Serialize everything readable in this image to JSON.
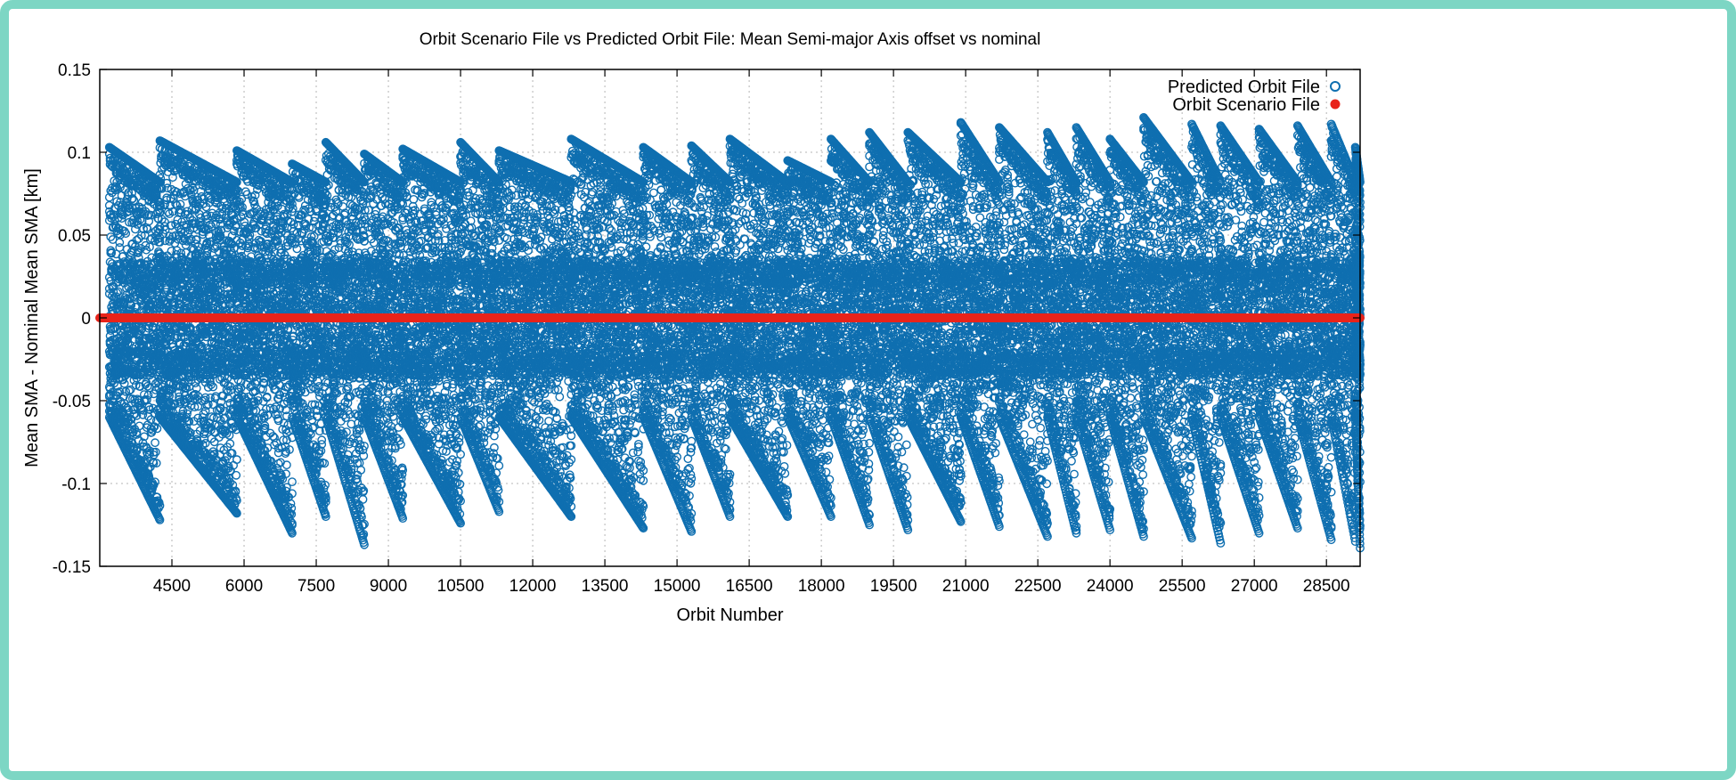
{
  "chart_data": {
    "type": "scatter",
    "title": "Orbit Scenario File vs Predicted Orbit File: Mean Semi-major Axis offset vs nominal",
    "xlabel": "Orbit Number",
    "ylabel": "Mean SMA - Nominal Mean SMA [km]",
    "xlim": [
      3000,
      29200
    ],
    "ylim": [
      -0.15,
      0.15
    ],
    "x_ticks": [
      4500,
      6000,
      7500,
      9000,
      10500,
      12000,
      13500,
      15000,
      16500,
      18000,
      19500,
      21000,
      22500,
      24000,
      25500,
      27000,
      28500
    ],
    "x_tick_labels": [
      "4500",
      "6000",
      "7500",
      "9000",
      "10500",
      "12000",
      "13500",
      "15000",
      "16500",
      "18000",
      "19500",
      "21000",
      "22500",
      "24000",
      "25500",
      "27000",
      "28500"
    ],
    "y_ticks": [
      -0.15,
      -0.1,
      -0.05,
      0,
      0.05,
      0.1,
      0.15
    ],
    "y_tick_labels": [
      "-0.15",
      "-0.1",
      "-0.05",
      "0",
      "0.05",
      "0.1",
      "0.15"
    ],
    "grid": true,
    "legend_position": "top-right",
    "series": [
      {
        "name": "Predicted Orbit File",
        "marker": "open-circle",
        "color": "#0f6fb0",
        "cycle_peaks_x": [
          3200,
          4250,
          5850,
          7000,
          7700,
          8500,
          9300,
          10500,
          11300,
          12800,
          14300,
          15300,
          16100,
          17300,
          18200,
          19000,
          19800,
          20900,
          21700,
          22700,
          23300,
          24000,
          24700,
          25700,
          26300,
          27100,
          27900,
          28600,
          29100
        ],
        "cycle_peaks_y": [
          0.103,
          0.107,
          0.101,
          0.093,
          0.106,
          0.099,
          0.102,
          0.106,
          0.101,
          0.108,
          0.103,
          0.104,
          0.108,
          0.095,
          0.108,
          0.112,
          0.112,
          0.118,
          0.115,
          0.112,
          0.115,
          0.108,
          0.121,
          0.117,
          0.116,
          0.114,
          0.116,
          0.117,
          0.103
        ],
        "cycle_troughs_y": [
          -0.122,
          -0.118,
          -0.13,
          -0.12,
          -0.137,
          -0.121,
          -0.124,
          -0.117,
          -0.12,
          -0.127,
          -0.129,
          -0.12,
          -0.12,
          -0.12,
          -0.125,
          -0.128,
          -0.123,
          -0.126,
          -0.132,
          -0.13,
          -0.128,
          -0.132,
          -0.133,
          -0.136,
          -0.13,
          -0.127,
          -0.134,
          -0.135,
          -0.139
        ]
      },
      {
        "name": "Orbit Scenario File",
        "marker": "filled-circle",
        "color": "#e8231a",
        "x_range": [
          3000,
          29200
        ],
        "y": 0.0
      }
    ]
  }
}
